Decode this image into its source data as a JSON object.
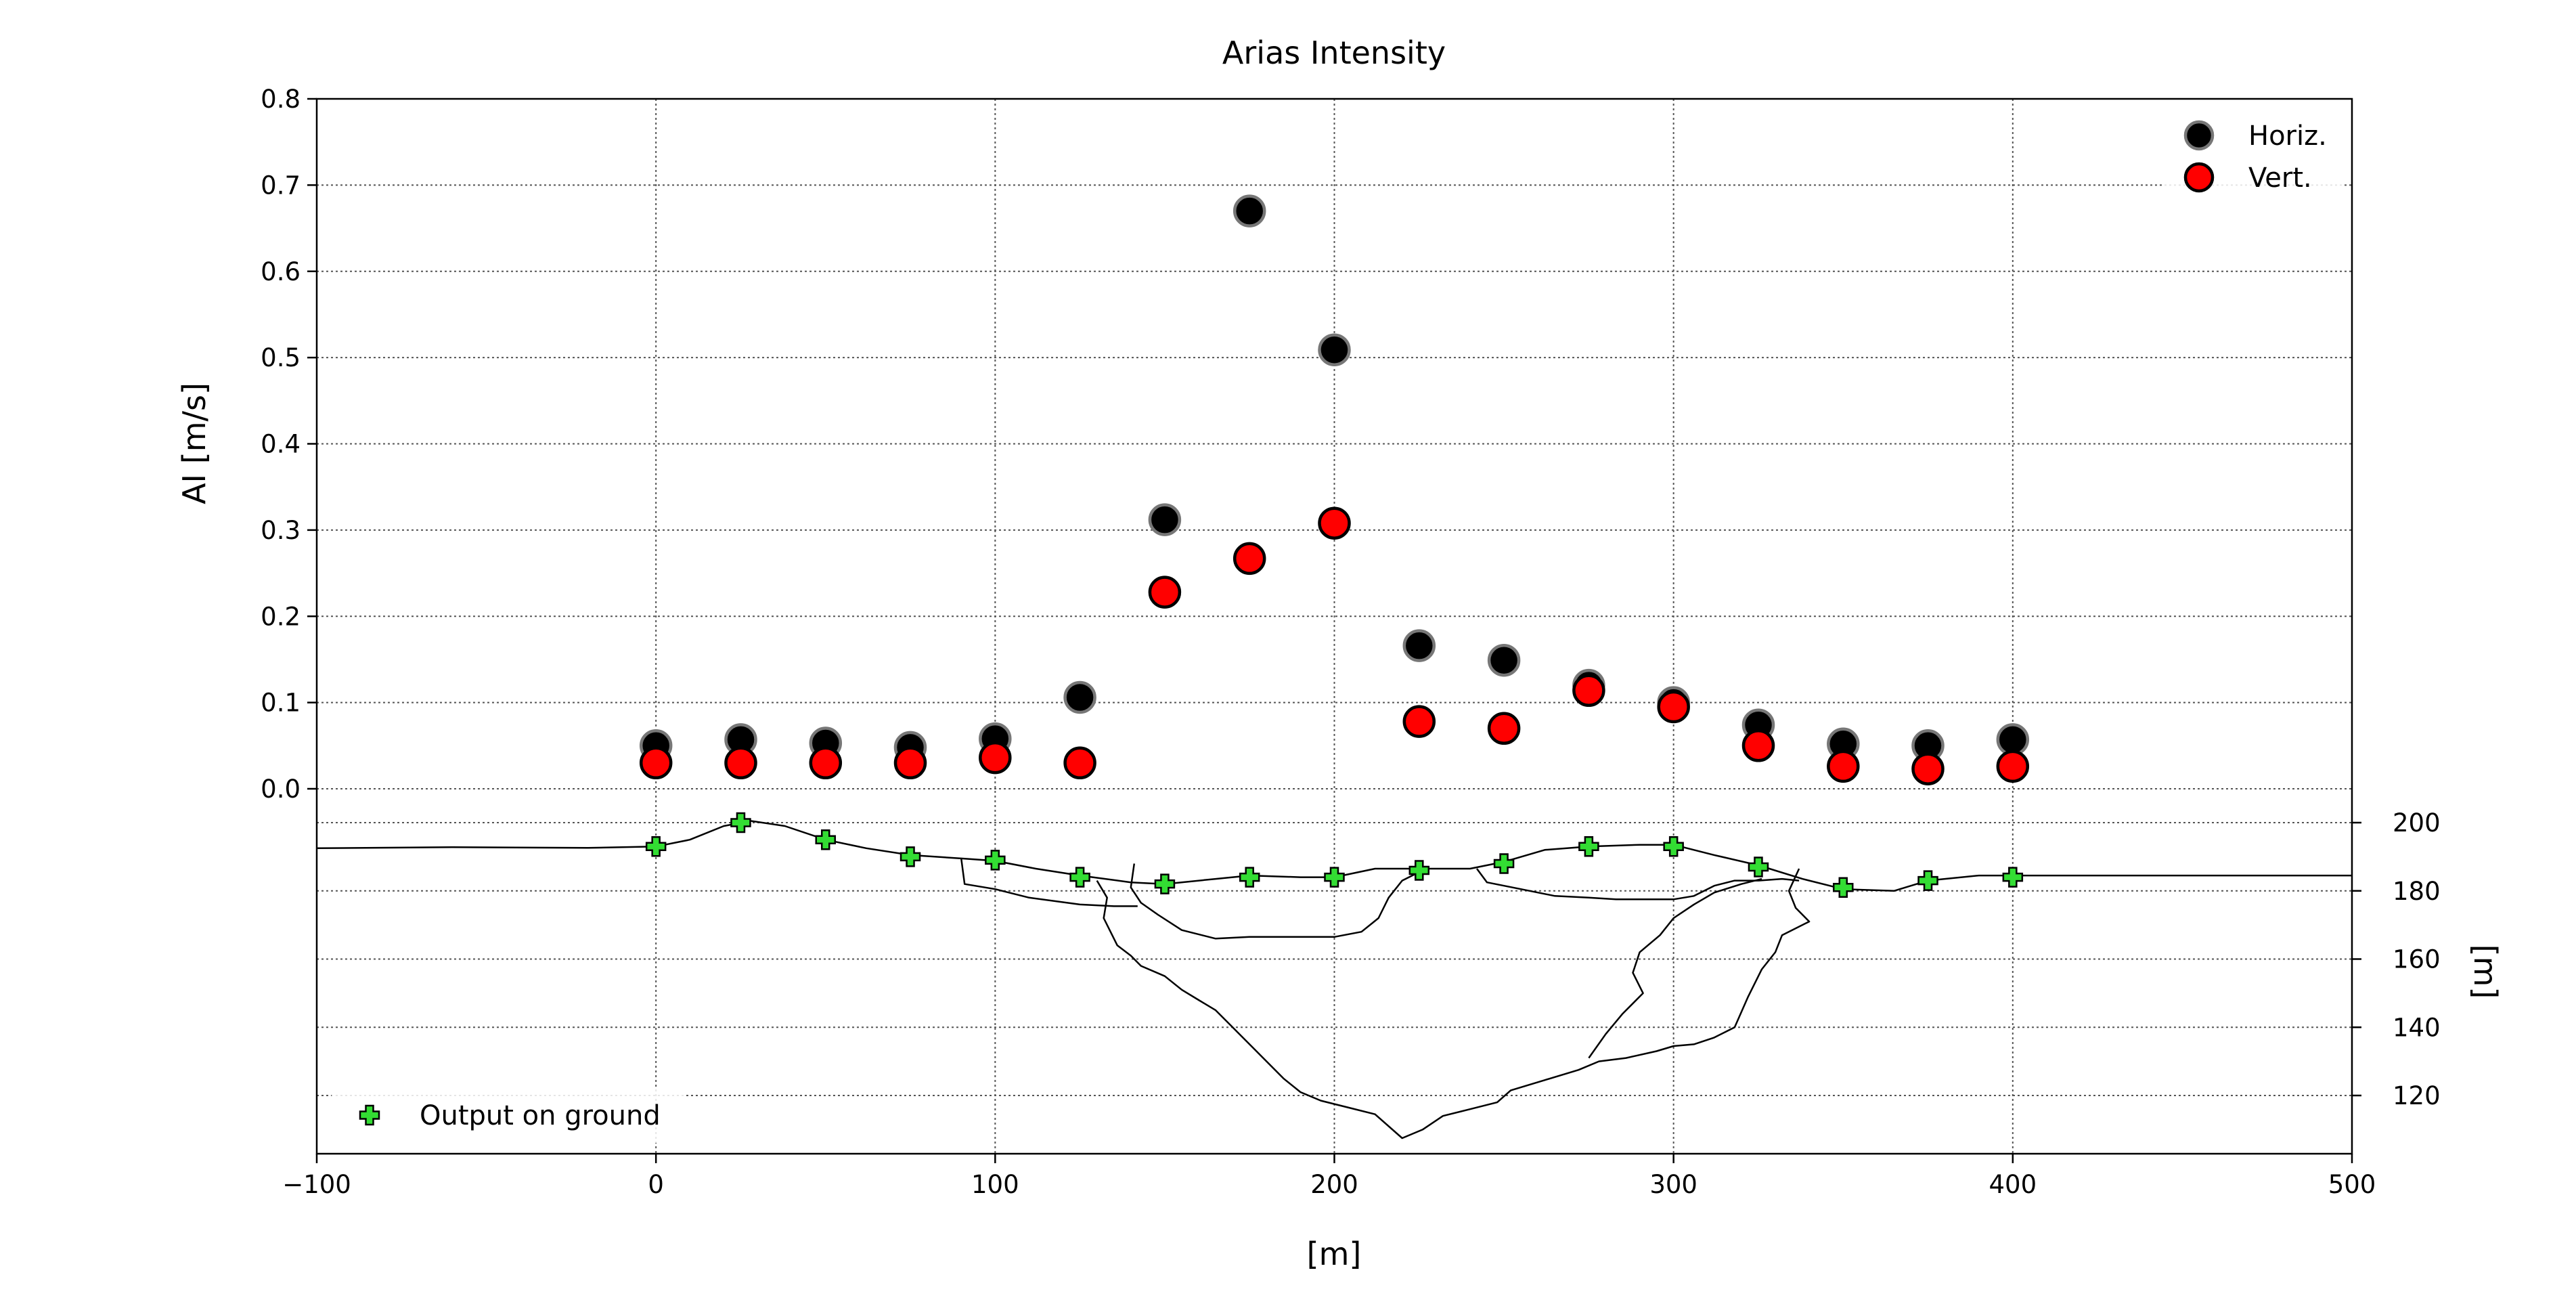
{
  "chart_data": {
    "type": "scatter",
    "title": "Arias Intensity",
    "xlabel": "[m]",
    "ylabel": "AI [m/s]",
    "ylabel_right": "[m]",
    "xlim": [
      -100,
      500
    ],
    "ylim": [
      0,
      0.8
    ],
    "elevation_lim": [
      102,
      200
    ],
    "x_ticks": [
      "−100",
      "0",
      "100",
      "200",
      "300",
      "400",
      "500"
    ],
    "x_tick_values": [
      -100,
      0,
      100,
      200,
      300,
      400,
      500
    ],
    "y_ticks": [
      "0.0",
      "0.1",
      "0.2",
      "0.3",
      "0.4",
      "0.5",
      "0.6",
      "0.7",
      "0.8"
    ],
    "y_tick_values": [
      0,
      0.1,
      0.2,
      0.3,
      0.4,
      0.5,
      0.6,
      0.7,
      0.8
    ],
    "elevation_ticks": [
      "120",
      "140",
      "160",
      "180",
      "200"
    ],
    "elevation_tick_values": [
      120,
      140,
      160,
      180,
      200
    ],
    "grid": true,
    "x": [
      0,
      25,
      50,
      75,
      100,
      125,
      150,
      175,
      200,
      225,
      250,
      275,
      300,
      325,
      350,
      375,
      400
    ],
    "series": [
      {
        "name": "Horiz.",
        "color": "#000000",
        "edge_color": "#777777",
        "values": [
          0.05,
          0.057,
          0.053,
          0.048,
          0.058,
          0.106,
          0.312,
          0.67,
          0.509,
          0.166,
          0.149,
          0.12,
          0.1,
          0.074,
          0.052,
          0.05,
          0.057
        ]
      },
      {
        "name": "Vert.",
        "color": "#ff0000",
        "edge_color": "#000000",
        "values": [
          0.03,
          0.03,
          0.03,
          0.03,
          0.036,
          0.03,
          0.228,
          0.267,
          0.308,
          0.078,
          0.07,
          0.114,
          0.095,
          0.05,
          0.026,
          0.023,
          0.026
        ]
      }
    ],
    "legend": {
      "location": "upper-right",
      "entries": [
        "Horiz.",
        "Vert."
      ]
    },
    "ground_output": {
      "name": "Output on ground",
      "color": "#33dd33",
      "legend_location": "lower-left",
      "x": [
        0,
        25,
        50,
        75,
        100,
        125,
        150,
        175,
        200,
        225,
        250,
        275,
        300,
        325,
        350,
        375,
        400
      ],
      "elevation": [
        193,
        200,
        195,
        190,
        189,
        184,
        182,
        184,
        184,
        186,
        188,
        193,
        193,
        187,
        181,
        183,
        184
      ]
    },
    "profiles": [
      {
        "name": "ground-surface",
        "points": [
          [
            -100,
            192.5
          ],
          [
            -60,
            192.8
          ],
          [
            -20,
            192.6
          ],
          [
            0,
            193
          ],
          [
            10,
            195
          ],
          [
            20,
            199
          ],
          [
            28,
            200.5
          ],
          [
            38,
            199
          ],
          [
            50,
            195
          ],
          [
            62,
            192.5
          ],
          [
            75,
            190.5
          ],
          [
            90,
            189.5
          ],
          [
            100,
            188.8
          ],
          [
            112,
            186.5
          ],
          [
            125,
            184.5
          ],
          [
            140,
            182.5
          ],
          [
            150,
            182
          ],
          [
            165,
            183.5
          ],
          [
            175,
            184.5
          ],
          [
            190,
            184
          ],
          [
            200,
            184
          ],
          [
            212,
            186.5
          ],
          [
            225,
            186.5
          ],
          [
            240,
            186.5
          ],
          [
            250,
            188.5
          ],
          [
            262,
            192
          ],
          [
            275,
            193
          ],
          [
            290,
            193.5
          ],
          [
            300,
            193.5
          ],
          [
            312,
            190.5
          ],
          [
            325,
            187.5
          ],
          [
            338,
            183.5
          ],
          [
            350,
            180.5
          ],
          [
            365,
            180
          ],
          [
            375,
            183
          ],
          [
            390,
            184.5
          ],
          [
            400,
            184.5
          ],
          [
            450,
            184.5
          ],
          [
            500,
            184.5
          ]
        ]
      },
      {
        "name": "upper-layer-left",
        "points": [
          [
            90,
            189.5
          ],
          [
            91,
            182
          ],
          [
            100,
            180.5
          ],
          [
            110,
            178
          ],
          [
            125,
            176
          ],
          [
            135,
            175.5
          ],
          [
            142,
            175.5
          ]
        ]
      },
      {
        "name": "upper-basin",
        "points": [
          [
            141,
            188
          ],
          [
            140,
            181
          ],
          [
            143,
            176.5
          ],
          [
            148,
            173
          ],
          [
            155,
            168.5
          ],
          [
            165,
            166
          ],
          [
            175,
            166.5
          ],
          [
            190,
            166.5
          ],
          [
            200,
            166.5
          ],
          [
            208,
            168
          ],
          [
            213,
            172
          ],
          [
            216,
            178
          ],
          [
            220,
            183
          ],
          [
            227,
            186.5
          ]
        ]
      },
      {
        "name": "deep-basin",
        "points": [
          [
            130,
            183
          ],
          [
            133,
            178
          ],
          [
            132,
            172
          ],
          [
            136,
            164
          ],
          [
            140,
            161
          ],
          [
            143,
            158
          ],
          [
            150,
            155
          ],
          [
            155,
            151
          ],
          [
            160,
            148
          ],
          [
            165,
            145
          ],
          [
            170,
            140
          ],
          [
            175,
            135
          ],
          [
            180,
            130
          ],
          [
            185,
            125
          ],
          [
            190,
            121
          ],
          [
            196,
            118.5
          ],
          [
            204,
            116.5
          ],
          [
            212,
            114.5
          ],
          [
            220,
            107.5
          ],
          [
            226,
            110
          ],
          [
            232,
            114
          ],
          [
            240,
            116
          ],
          [
            248,
            118
          ],
          [
            252,
            121.5
          ],
          [
            262,
            124.5
          ],
          [
            272,
            127.5
          ],
          [
            278,
            130
          ],
          [
            286,
            131
          ],
          [
            295,
            133
          ],
          [
            300,
            134.5
          ],
          [
            306,
            135
          ],
          [
            312,
            137
          ],
          [
            318,
            140
          ],
          [
            322,
            149
          ],
          [
            326,
            157
          ],
          [
            330,
            162
          ],
          [
            332,
            167
          ],
          [
            340,
            171
          ],
          [
            336,
            175
          ],
          [
            334,
            180
          ],
          [
            337,
            186.5
          ]
        ]
      },
      {
        "name": "right-layer-line",
        "points": [
          [
            242,
            186.5
          ],
          [
            245,
            182.5
          ],
          [
            255,
            180.5
          ],
          [
            265,
            178.5
          ],
          [
            275,
            178
          ],
          [
            283,
            177.5
          ],
          [
            291,
            177.5
          ],
          [
            300,
            177.5
          ],
          [
            306,
            178.5
          ],
          [
            312,
            181.5
          ],
          [
            318,
            183
          ],
          [
            325,
            183
          ],
          [
            332,
            183.5
          ],
          [
            337,
            183
          ]
        ]
      },
      {
        "name": "right-inner-boundary",
        "points": [
          [
            275,
            131
          ],
          [
            280,
            138
          ],
          [
            285,
            144
          ],
          [
            291,
            150
          ],
          [
            288,
            156
          ],
          [
            290,
            162
          ],
          [
            296,
            167
          ],
          [
            300,
            172
          ],
          [
            306,
            176
          ],
          [
            312,
            179.5
          ],
          [
            320,
            182
          ],
          [
            326,
            183.5
          ]
        ]
      }
    ]
  }
}
